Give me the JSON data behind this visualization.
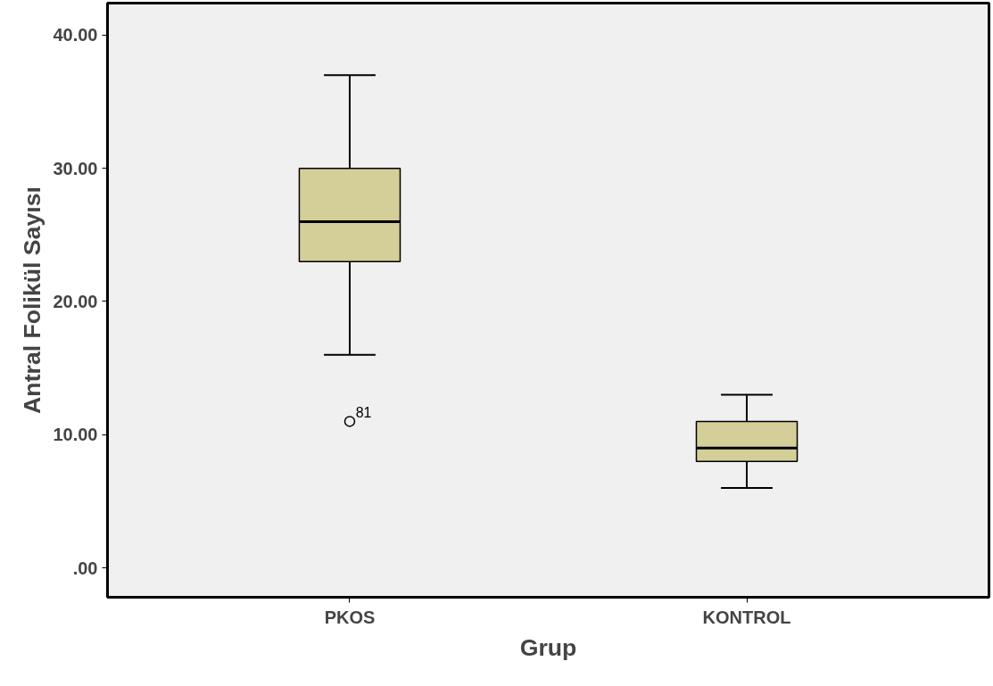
{
  "chart_data": {
    "type": "box",
    "xlabel": "Grup",
    "ylabel": "Antral Folikül Sayısı",
    "categories": [
      "PKOS",
      "KONTROL"
    ],
    "series": [
      {
        "color": "#d4cf98",
        "boxes": [
          {
            "low": 16,
            "q1": 23,
            "median": 26,
            "q3": 30,
            "high": 37,
            "outliers": [
              11
            ]
          },
          {
            "low": 6,
            "q1": 8,
            "median": 9,
            "q3": 11,
            "high": 13
          }
        ]
      }
    ],
    "ylim": [
      -2.2,
      42.4
    ],
    "yticks": [
      {
        "value": 0,
        "label": ".00"
      },
      {
        "value": 10,
        "label": "10.00"
      },
      {
        "value": 20,
        "label": "20.00"
      },
      {
        "value": 30,
        "label": "30.00"
      },
      {
        "value": 40,
        "label": "40.00"
      }
    ],
    "grid": false,
    "annotations": [
      "81"
    ]
  }
}
